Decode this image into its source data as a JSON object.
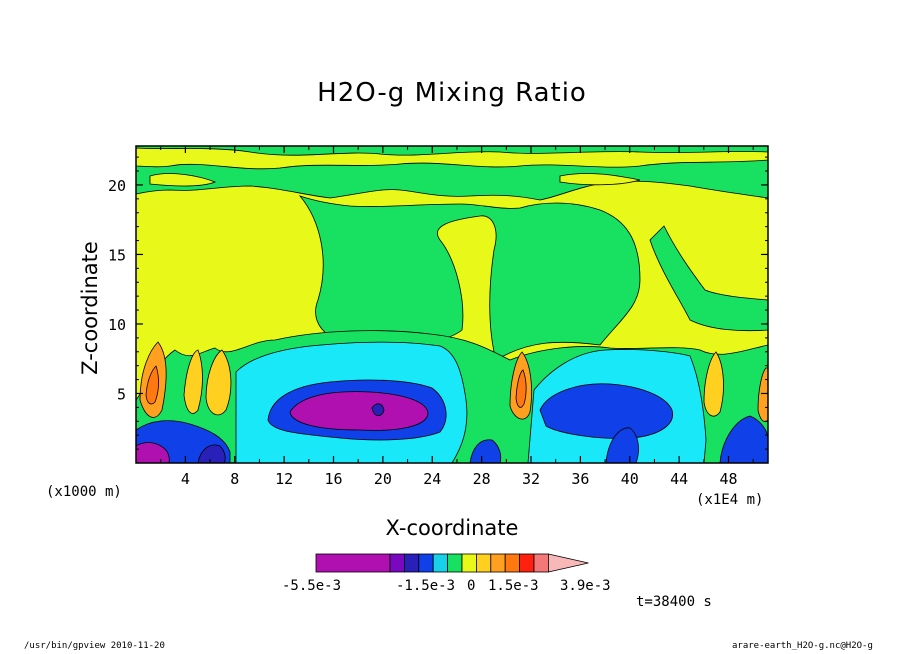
{
  "title": "H2O-g Mixing Ratio",
  "xlabel": "X-coordinate",
  "ylabel": "Z-coordinate",
  "x_unit": "(x1000 m)",
  "x_scale": "(x1E4 m)",
  "time_label": "t=38400 s",
  "footer_left": "/usr/bin/gpview  2010-11-20",
  "footer_right": "arare-earth_H2O-g.nc@H2O-g",
  "colorbar": {
    "labels": [
      "-5.5e-3",
      "-1.5e-3",
      "0",
      "1.5e-3",
      "3.9e-3"
    ],
    "colors": [
      "#b010b0",
      "#7a08c0",
      "#2820b8",
      "#1040e8",
      "#18d0e8",
      "#18e060",
      "#e8f818",
      "#ffd020",
      "#ffa020",
      "#ff7810",
      "#ff2010",
      "#f47878",
      "#f8b8b8"
    ]
  },
  "chart_data": {
    "type": "heatmap",
    "title": "H2O-g Mixing Ratio",
    "xlabel": "X-coordinate",
    "ylabel": "Z-coordinate",
    "x_ticks": [
      4,
      8,
      12,
      16,
      20,
      24,
      28,
      32,
      36,
      40,
      44,
      48
    ],
    "y_ticks": [
      5,
      10,
      15,
      20
    ],
    "xlim": [
      0,
      51.2
    ],
    "ylim": [
      0,
      22.8
    ],
    "colorbar_labels": [
      "-5.5e-3",
      "-1.5e-3",
      "0",
      "1.5e-3",
      "3.9e-3"
    ]
  }
}
